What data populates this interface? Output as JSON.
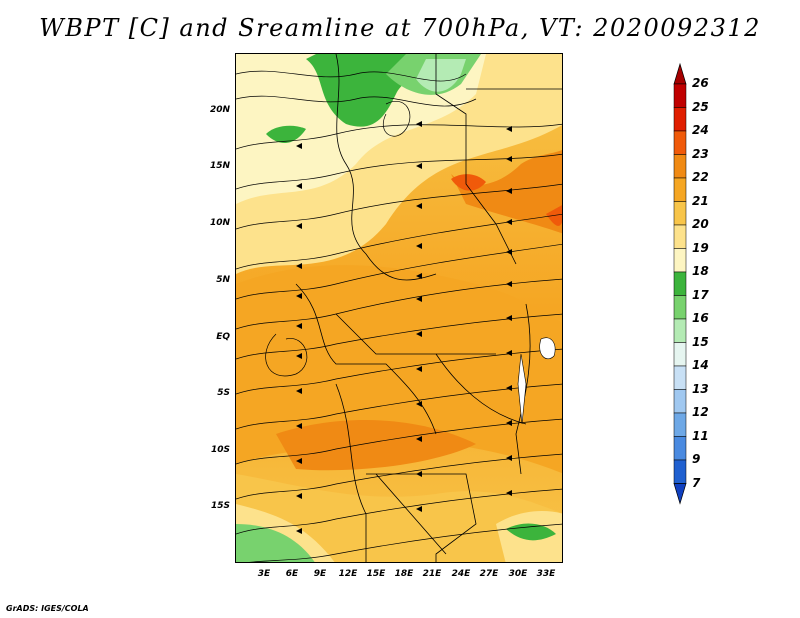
{
  "title": "WBPT [C] and Sreamline at 700hPa, VT: 2020092312",
  "credit": "GrADS: IGES/COLA",
  "map": {
    "lat_labels": [
      "20N",
      "15N",
      "10N",
      "5N",
      "EQ",
      "5S",
      "10S",
      "15S"
    ],
    "lon_labels": [
      "3E",
      "6E",
      "9E",
      "12E",
      "15E",
      "18E",
      "21E",
      "24E",
      "27E",
      "30E",
      "33E"
    ]
  },
  "colorbar": {
    "levels": [
      "26",
      "25",
      "24",
      "23",
      "22",
      "21",
      "20",
      "19",
      "18",
      "17",
      "16",
      "15",
      "14",
      "13",
      "12",
      "11",
      "9",
      "7"
    ],
    "colors": [
      "#a50000",
      "#c00000",
      "#e01e00",
      "#f05a0a",
      "#f08a14",
      "#f5a623",
      "#f8c54a",
      "#fde28c",
      "#fdf5c2",
      "#3cb43c",
      "#78d26e",
      "#b4ebb4",
      "#e6f5f0",
      "#c8e0f5",
      "#a0c8f0",
      "#6ea8e6",
      "#4a8ae0",
      "#2060d0",
      "#1040c0"
    ]
  }
}
